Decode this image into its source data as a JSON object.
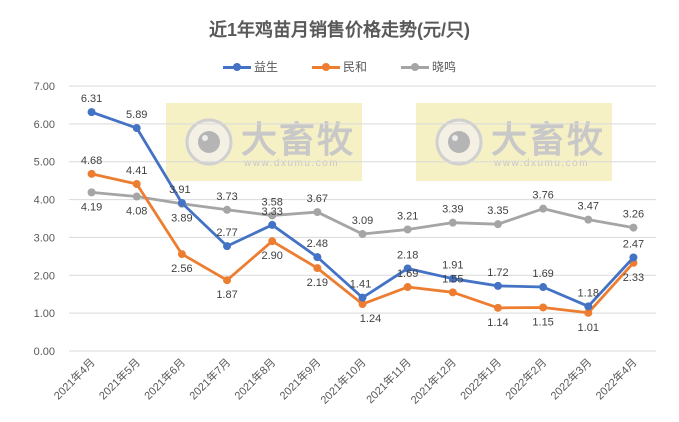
{
  "chart_data": {
    "type": "line",
    "title": "近1年鸡苗月销售价格走势(元/只)",
    "xlabel": "",
    "ylabel": "",
    "ylim": [
      0,
      7
    ],
    "yticks": [
      "0.00",
      "1.00",
      "2.00",
      "3.00",
      "4.00",
      "5.00",
      "6.00",
      "7.00"
    ],
    "grid": true,
    "legend_position": "top",
    "categories": [
      "2021年4月",
      "2021年5月",
      "2021年6月",
      "2021年7月",
      "2021年8月",
      "2021年9月",
      "2021年10月",
      "2021年11月",
      "2021年12月",
      "2022年1月",
      "2022年2月",
      "2022年3月",
      "2022年4月"
    ],
    "series": [
      {
        "name": "益生",
        "color": "#4472C4",
        "values": [
          6.31,
          5.89,
          3.91,
          2.77,
          3.33,
          2.48,
          1.41,
          2.18,
          1.91,
          1.72,
          1.69,
          1.18,
          2.47
        ]
      },
      {
        "name": "民和",
        "color": "#ED7D31",
        "values": [
          4.68,
          4.41,
          2.56,
          1.87,
          2.9,
          2.19,
          1.24,
          1.69,
          1.55,
          1.14,
          1.15,
          1.01,
          2.33
        ]
      },
      {
        "name": "晓鸣",
        "color": "#A5A5A5",
        "values": [
          4.19,
          4.08,
          3.89,
          3.73,
          3.58,
          3.67,
          3.09,
          3.21,
          3.39,
          3.35,
          3.76,
          3.47,
          3.26
        ]
      }
    ],
    "label_positions": {
      "益生": [
        "above",
        "above",
        "above-left",
        "above",
        "above",
        "above",
        "above-left",
        "above",
        "above",
        "above",
        "above",
        "above",
        "above"
      ],
      "民和": [
        "above",
        "above",
        "below",
        "below",
        "below",
        "below",
        "below-right",
        "above",
        "above",
        "below",
        "below",
        "below",
        "below"
      ],
      "晓鸣": [
        "below",
        "below",
        "below",
        "above",
        "above",
        "above",
        "above",
        "above",
        "above",
        "above",
        "above",
        "above",
        "above"
      ]
    }
  },
  "watermark": {
    "brand": "大畜牧",
    "url": "www.dxumu.com",
    "background": "#F5EFC2"
  },
  "legend": {
    "items": [
      {
        "label": "益生",
        "color": "#4472C4"
      },
      {
        "label": "民和",
        "color": "#ED7D31"
      },
      {
        "label": "晓鸣",
        "color": "#A5A5A5"
      }
    ]
  }
}
